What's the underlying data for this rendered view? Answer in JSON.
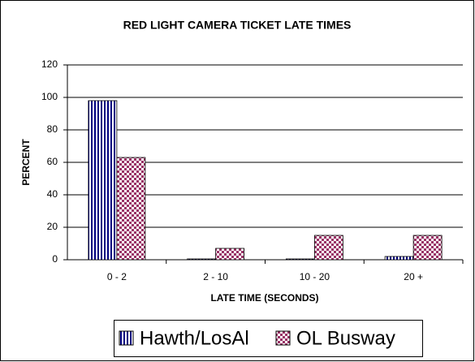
{
  "chart_data": {
    "type": "bar",
    "title": "RED LIGHT CAMERA TICKET LATE TIMES",
    "x_label": "LATE TIME (SECONDS)",
    "y_label": "PERCENT",
    "categories": [
      "0 - 2",
      "2 - 10",
      "10 - 20",
      "20 +"
    ],
    "series": [
      {
        "name": "Hawth/LosAl",
        "color": "#000080",
        "pattern": "vertical-stripes",
        "values": [
          98,
          0.5,
          0.5,
          2
        ]
      },
      {
        "name": "OL Busway",
        "color": "#993366",
        "pattern": "checker",
        "values": [
          63,
          7,
          15,
          15
        ]
      }
    ],
    "ylim": [
      0,
      120
    ],
    "yticks": [
      0,
      20,
      40,
      60,
      80,
      100,
      120
    ],
    "grid": true,
    "legend": "bottom"
  }
}
